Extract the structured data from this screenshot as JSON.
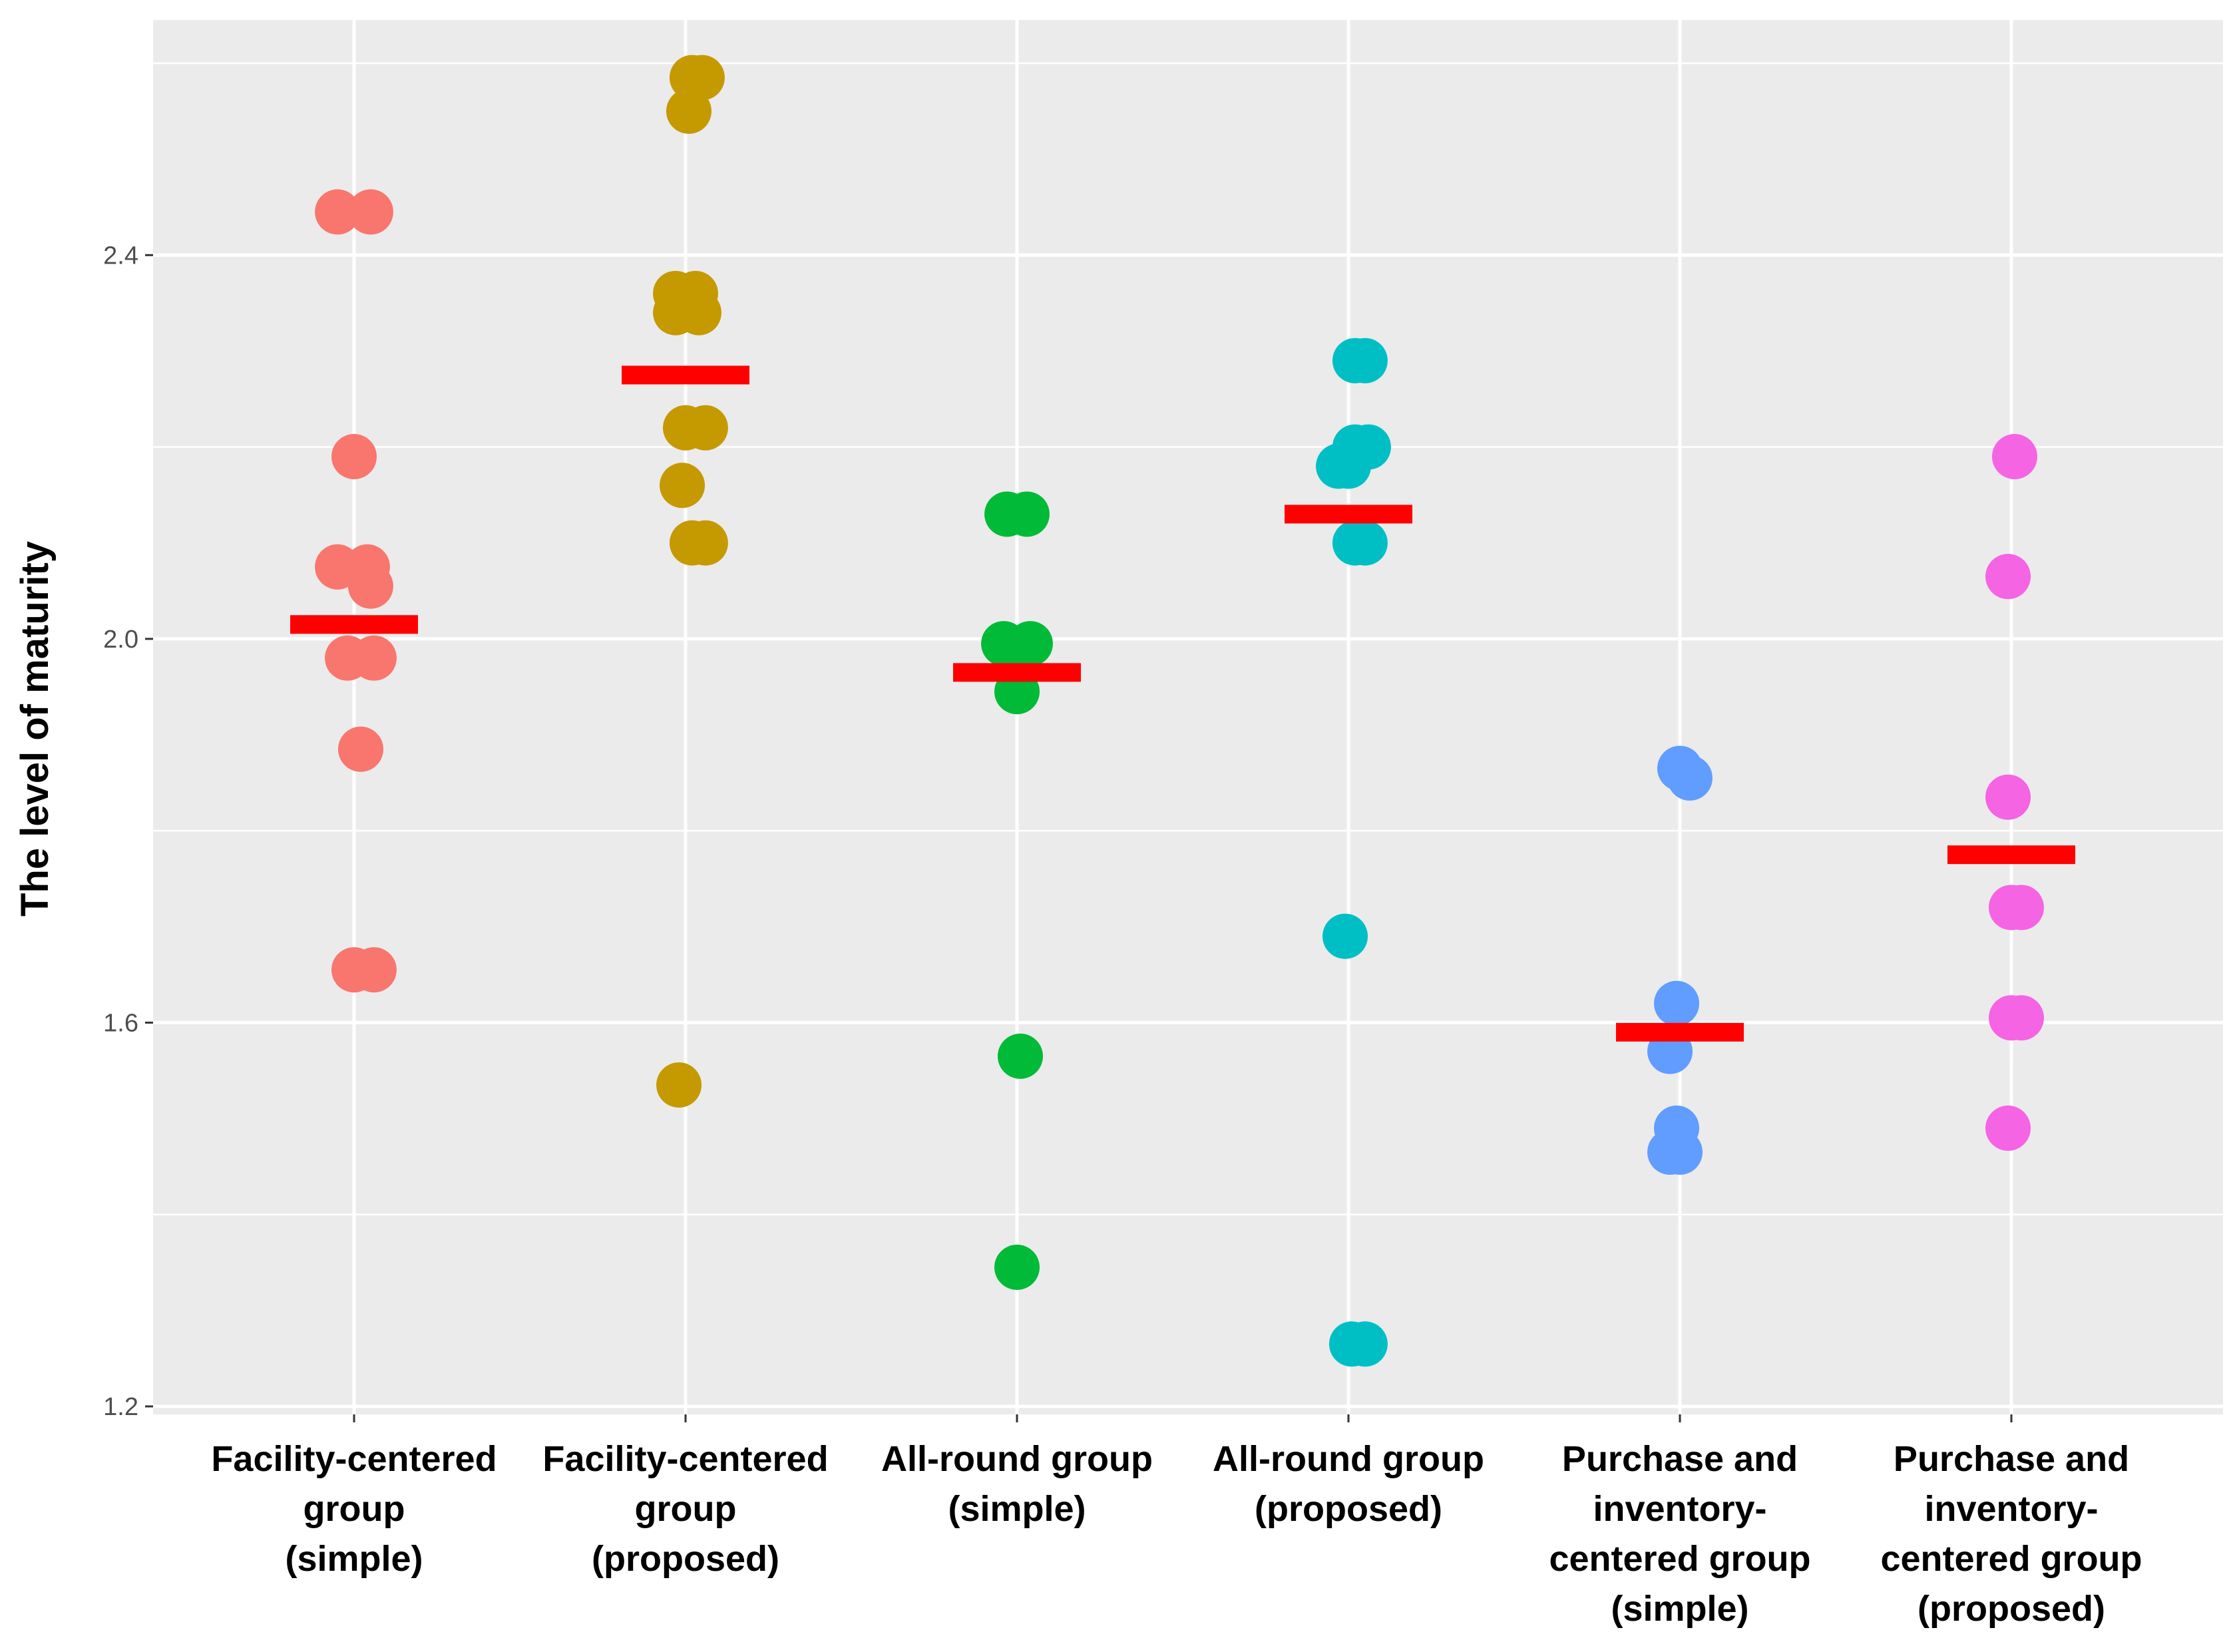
{
  "chart_data": {
    "type": "scatter",
    "title": "",
    "xlabel": "",
    "ylabel": "The level of maturity",
    "ylim": [
      1.2,
      2.6
    ],
    "yticks": [
      1.2,
      1.6,
      2.0,
      2.4
    ],
    "ytick_labels": [
      "1.2",
      "1.6",
      "2.0",
      "2.4"
    ],
    "grid": true,
    "legend": "none",
    "mean_marker_color": "#ff0000",
    "panel_background": "#ebebeb",
    "categories": [
      {
        "lines": [
          "Facility-centered",
          "group",
          "(simple)"
        ],
        "color": "#f8766d",
        "mean": 2.015,
        "points": [
          [
            -0.05,
            2.445
          ],
          [
            0.05,
            2.445
          ],
          [
            0.0,
            2.19
          ],
          [
            -0.05,
            2.075
          ],
          [
            0.04,
            2.075
          ],
          [
            0.05,
            2.055
          ],
          [
            -0.02,
            1.98
          ],
          [
            0.06,
            1.98
          ],
          [
            0.02,
            1.885
          ],
          [
            0.0,
            1.655
          ],
          [
            0.06,
            1.655
          ]
        ]
      },
      {
        "lines": [
          "Facility-centered",
          "group",
          "(proposed)"
        ],
        "color": "#c49a00",
        "mean": 2.275,
        "points": [
          [
            0.02,
            2.585
          ],
          [
            0.05,
            2.585
          ],
          [
            0.01,
            2.55
          ],
          [
            -0.03,
            2.36
          ],
          [
            0.03,
            2.36
          ],
          [
            -0.03,
            2.34
          ],
          [
            0.04,
            2.34
          ],
          [
            0.0,
            2.22
          ],
          [
            0.06,
            2.22
          ],
          [
            -0.01,
            2.16
          ],
          [
            0.02,
            2.1
          ],
          [
            0.06,
            2.1
          ],
          [
            -0.02,
            1.535
          ]
        ]
      },
      {
        "lines": [
          "All-round group",
          "(simple)"
        ],
        "color": "#00ba38",
        "mean": 1.965,
        "points": [
          [
            -0.03,
            2.13
          ],
          [
            0.03,
            2.13
          ],
          [
            -0.04,
            1.995
          ],
          [
            0.04,
            1.995
          ],
          [
            0.0,
            1.99
          ],
          [
            0.0,
            1.945
          ],
          [
            0.01,
            1.565
          ],
          [
            0.0,
            1.345
          ]
        ]
      },
      {
        "lines": [
          "All-round group",
          "(proposed)"
        ],
        "color": "#00bfc4",
        "mean": 2.13,
        "points": [
          [
            0.02,
            2.29
          ],
          [
            0.05,
            2.29
          ],
          [
            0.02,
            2.2
          ],
          [
            0.06,
            2.2
          ],
          [
            -0.03,
            2.18
          ],
          [
            0.0,
            2.18
          ],
          [
            0.02,
            2.1
          ],
          [
            0.05,
            2.1
          ],
          [
            -0.01,
            1.69
          ],
          [
            0.01,
            1.265
          ],
          [
            0.05,
            1.265
          ]
        ]
      },
      {
        "lines": [
          "Purchase and",
          "inventory-",
          "centered group",
          "(simple)"
        ],
        "color": "#619cff",
        "mean": 1.59,
        "points": [
          [
            0.0,
            1.865
          ],
          [
            0.03,
            1.855
          ],
          [
            -0.01,
            1.62
          ],
          [
            -0.03,
            1.57
          ],
          [
            -0.01,
            1.49
          ],
          [
            -0.03,
            1.465
          ],
          [
            0.0,
            1.465
          ]
        ]
      },
      {
        "lines": [
          "Purchase and",
          "inventory-",
          "centered group",
          "(proposed)"
        ],
        "color": "#f564e3",
        "mean": 1.775,
        "points": [
          [
            0.01,
            2.19
          ],
          [
            -0.01,
            2.065
          ],
          [
            -0.01,
            1.835
          ],
          [
            0.0,
            1.72
          ],
          [
            0.03,
            1.72
          ],
          [
            0.0,
            1.605
          ],
          [
            0.03,
            1.605
          ],
          [
            -0.01,
            1.49
          ]
        ]
      }
    ]
  }
}
